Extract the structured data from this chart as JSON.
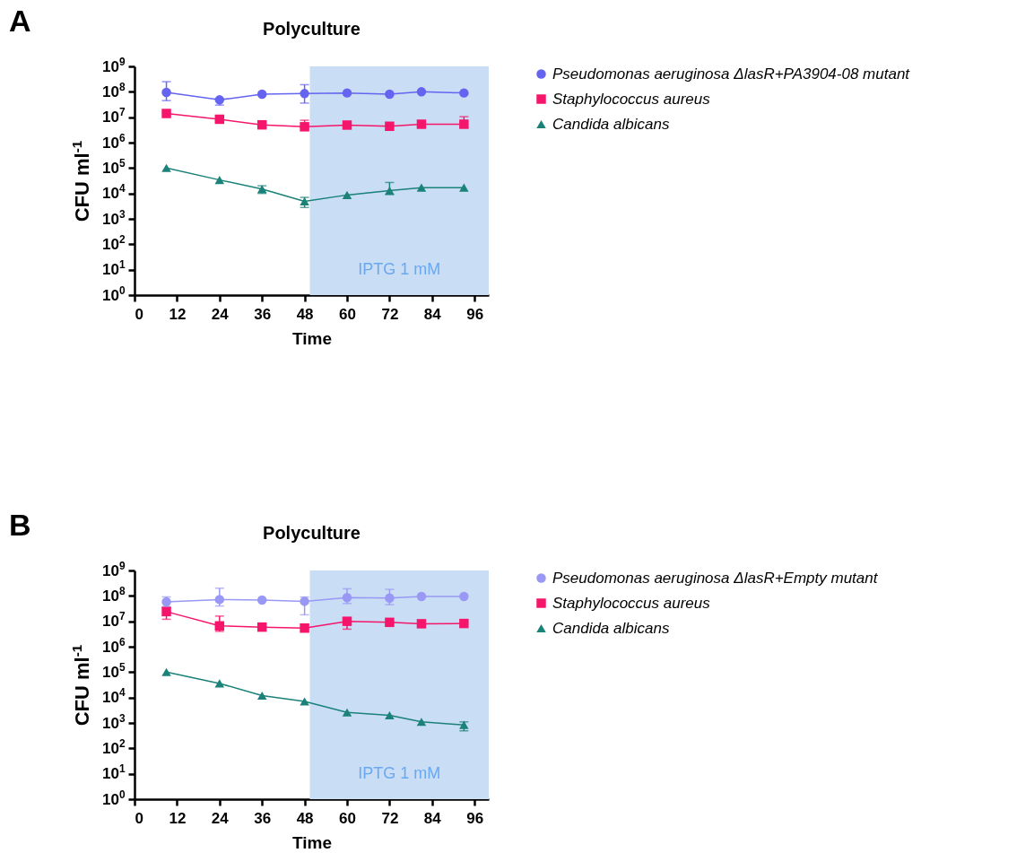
{
  "chart_data": [
    {
      "type": "line",
      "title": "Polyculture",
      "xlabel": "Time",
      "ylabel": "CFU ml$^{-1}$",
      "annotations": [
        "A"
      ],
      "log": true,
      "grid": false,
      "legend": "top right",
      "x": [
        9,
        24,
        36,
        48,
        60,
        72,
        81,
        93
      ],
      "xlim": [
        0,
        100
      ],
      "xticks": [
        0,
        12,
        24,
        36,
        48,
        60,
        72,
        84,
        96
      ],
      "ylim": [
        1,
        1000000000
      ],
      "yticks": [
        {
          "value": 1,
          "label": "10$^{0}$"
        },
        {
          "value": 10,
          "label": "10$^{1}$"
        },
        {
          "value": 100,
          "label": "10$^{2}$"
        },
        {
          "value": 1000,
          "label": "10$^{3}$"
        },
        {
          "value": 10000,
          "label": "10$^{4}$"
        },
        {
          "value": 100000,
          "label": "10$^{5}$"
        },
        {
          "value": 1000000,
          "label": "10$^{6}$"
        },
        {
          "value": 10000000,
          "label": "10$^{7}$"
        },
        {
          "value": 100000000,
          "label": "10$^{8}$"
        },
        {
          "value": 1000000000,
          "label": "10$^{9}$"
        }
      ],
      "bands": [
        {
          "axis": "x",
          "from": 49.5,
          "to": 100,
          "label": "IPTG 1 mM",
          "color": "#c9ddf5"
        }
      ],
      "series": [
        {
          "name": "Pseudomonas aeruginosa ΔlasR+PA3904-08 mutant",
          "color": "#6464f0",
          "marker": "circle",
          "values": [
            95000000,
            48000000,
            80000000,
            85000000,
            90000000,
            80000000,
            100000000,
            90000000
          ],
          "errors": [
            [
              45000000,
              250000000
            ],
            [
              30000000,
              55000000
            ],
            null,
            [
              36000000,
              190000000
            ],
            null,
            null,
            null,
            null
          ]
        },
        {
          "name": "Staphylococcus aureus",
          "color": "#f5166b",
          "marker": "square",
          "values": [
            14000000,
            8300000,
            5000000,
            4200000,
            4900000,
            4400000,
            5300000,
            5300000
          ],
          "errors": [
            null,
            null,
            null,
            [
              4000000,
              7600000
            ],
            null,
            null,
            null,
            [
              4000000,
              10500000
            ]
          ]
        },
        {
          "name": "Candida albicans",
          "color": "#1a8278",
          "marker": "triangle",
          "values": [
            100000,
            34000,
            15000,
            4900,
            8700,
            13000,
            17000,
            17000
          ],
          "errors": [
            null,
            null,
            [
              10000,
              20000
            ],
            [
              2800,
              7000
            ],
            null,
            [
              9000,
              27000
            ],
            null,
            null
          ]
        }
      ]
    },
    {
      "type": "line",
      "title": "Polyculture",
      "xlabel": "Time",
      "ylabel": "CFU ml$^{-1}$",
      "annotations": [
        "B"
      ],
      "log": true,
      "grid": false,
      "legend": "top right",
      "x": [
        9,
        24,
        36,
        48,
        60,
        72,
        81,
        93
      ],
      "xlim": [
        0,
        100
      ],
      "xticks": [
        0,
        12,
        24,
        36,
        48,
        60,
        72,
        84,
        96
      ],
      "ylim": [
        1,
        1000000000
      ],
      "yticks": [
        {
          "value": 1,
          "label": "10$^{0}$"
        },
        {
          "value": 10,
          "label": "10$^{1}$"
        },
        {
          "value": 100,
          "label": "10$^{2}$"
        },
        {
          "value": 1000,
          "label": "10$^{3}$"
        },
        {
          "value": 10000,
          "label": "10$^{4}$"
        },
        {
          "value": 100000,
          "label": "10$^{5}$"
        },
        {
          "value": 1000000,
          "label": "10$^{6}$"
        },
        {
          "value": 10000000,
          "label": "10$^{7}$"
        },
        {
          "value": 100000000,
          "label": "10$^{8}$"
        },
        {
          "value": 1000000000,
          "label": "10$^{9}$"
        }
      ],
      "bands": [
        {
          "axis": "x",
          "from": 49.5,
          "to": 100,
          "label": "IPTG 1 mM",
          "color": "#c9ddf5"
        }
      ],
      "series": [
        {
          "name": "Pseudomonas aeruginosa ΔlasR+Empty mutant",
          "color": "#9999f5",
          "marker": "circle",
          "values": [
            58000000,
            72000000,
            68000000,
            61000000,
            86000000,
            82000000,
            95000000,
            95000000
          ],
          "errors": [
            [
              38000000,
              91000000
            ],
            [
              40000000,
              200000000
            ],
            null,
            [
              18000000,
              90000000
            ],
            [
              50000000,
              190000000
            ],
            [
              45000000,
              180000000
            ],
            null,
            null
          ]
        },
        {
          "name": "Staphylococcus aureus",
          "color": "#f5166b",
          "marker": "square",
          "values": [
            24000000,
            6600000,
            5900000,
            5400000,
            10000000,
            9100000,
            8000000,
            8200000
          ],
          "errors": [
            [
              12000000,
              35000000
            ],
            [
              4000000,
              16000000
            ],
            null,
            null,
            [
              4900000,
              13000000
            ],
            null,
            null,
            null
          ]
        },
        {
          "name": "Candida albicans",
          "color": "#1a8278",
          "marker": "triangle",
          "values": [
            100000,
            36000,
            12000,
            7000,
            2600,
            2000,
            1100,
            840
          ],
          "errors": [
            null,
            null,
            null,
            null,
            null,
            null,
            null,
            [
              490,
              1100
            ]
          ]
        }
      ]
    }
  ]
}
